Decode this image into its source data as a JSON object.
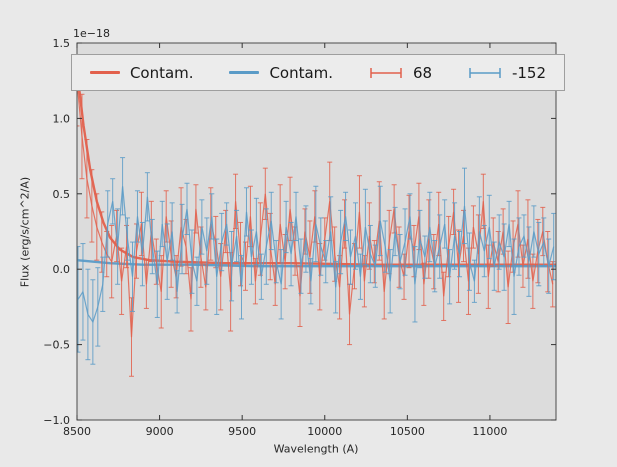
{
  "chart_data": {
    "type": "line",
    "title": "",
    "xlabel": "Wavelength (A)",
    "ylabel": "Flux (erg/s/cm^2/A)",
    "offset_label": "1e−18",
    "xlim": [
      8500,
      11400
    ],
    "ylim": [
      -1.0,
      1.5
    ],
    "xticks": [
      8500,
      9000,
      9500,
      10000,
      10500,
      11000
    ],
    "yticks": [
      -1.0,
      -0.5,
      0.0,
      0.5,
      1.0,
      1.5
    ],
    "grid": false,
    "legend_position": "upper center",
    "style": {
      "figure_bg": "#e9e9e9",
      "axes_bg": "#dcdcdc",
      "legend_bg": "#ececec",
      "red": "#e2604c",
      "blue": "#5a9bc7"
    },
    "legend": [
      {
        "label": "Contam.",
        "color": "#e2604c",
        "glyph": "line"
      },
      {
        "label": "Contam.",
        "color": "#5a9bc7",
        "glyph": "line"
      },
      {
        "label": "68",
        "color": "#e2604c",
        "glyph": "errorbar"
      },
      {
        "label": "-152",
        "color": "#5a9bc7",
        "glyph": "errorbar"
      }
    ],
    "series": [
      {
        "name": "Contam. (red)",
        "type": "line",
        "color": "#e2604c",
        "x": [
          8500,
          8540,
          8580,
          8620,
          8660,
          8700,
          8760,
          8840,
          8940,
          9100,
          9400,
          9800,
          10300,
          10800,
          11400
        ],
        "y": [
          1.32,
          0.95,
          0.66,
          0.45,
          0.31,
          0.21,
          0.13,
          0.08,
          0.06,
          0.05,
          0.04,
          0.04,
          0.03,
          0.03,
          0.03
        ]
      },
      {
        "name": "Contam. (blue)",
        "type": "line",
        "color": "#5a9bc7",
        "x": [
          8500,
          8600,
          8700,
          8900,
          9200,
          9600,
          10000,
          10500,
          11000,
          11400
        ],
        "y": [
          0.06,
          0.05,
          0.04,
          0.03,
          0.03,
          0.02,
          0.02,
          0.02,
          0.02,
          0.02
        ]
      },
      {
        "name": "68",
        "type": "errorbar",
        "color": "#e2604c",
        "x0": 8500,
        "dx": 30,
        "y": [
          1.25,
          0.88,
          0.6,
          0.42,
          0.28,
          0.18,
          0.1,
          0.05,
          0.22,
          -0.08,
          0.15,
          -0.45,
          0.12,
          0.3,
          -0.1,
          0.25,
          0.05,
          -0.15,
          0.35,
          0.1,
          -0.05,
          0.28,
          0.15,
          -0.2,
          0.4,
          0.08,
          -0.12,
          0.3,
          0.18,
          -0.05,
          0.25,
          -0.15,
          0.45,
          0.1,
          0.02,
          0.35,
          -0.08,
          0.2,
          0.5,
          0.15,
          -0.1,
          0.3,
          0.05,
          0.4,
          0.12,
          -0.18,
          0.25,
          0.08,
          0.35,
          -0.05,
          0.2,
          0.45,
          0.1,
          -0.12,
          0.3,
          -0.3,
          0.02,
          0.38,
          -0.08,
          0.22,
          0.05,
          0.32,
          -0.15,
          0.18,
          0.4,
          0.08,
          -0.05,
          0.25,
          0.12,
          0.35,
          -0.1,
          0.2,
          0.05,
          0.3,
          -0.18,
          0.15,
          0.38,
          0.02,
          0.22,
          -0.08,
          0.28,
          0.1,
          0.45,
          -0.05,
          0.18,
          0.05,
          0.25,
          -0.12,
          0.15,
          0.3,
          0.02,
          0.2,
          -0.08,
          0.12,
          0.25,
          0.05,
          -0.1
        ],
        "yerr": [
          0.3,
          0.28,
          0.26,
          0.24,
          0.22,
          0.2,
          0.15,
          0.24,
          0.17,
          0.22,
          0.14,
          0.26,
          0.18,
          0.21,
          0.16,
          0.2,
          0.15,
          0.24,
          0.17,
          0.22,
          0.14,
          0.26,
          0.18,
          0.21,
          0.16,
          0.2,
          0.15,
          0.24,
          0.17,
          0.22,
          0.14,
          0.26,
          0.18,
          0.21,
          0.16,
          0.2,
          0.15,
          0.24,
          0.17,
          0.22,
          0.14,
          0.26,
          0.18,
          0.21,
          0.16,
          0.2,
          0.15,
          0.24,
          0.17,
          0.22,
          0.14,
          0.26,
          0.18,
          0.21,
          0.16,
          0.2,
          0.15,
          0.24,
          0.17,
          0.22,
          0.14,
          0.26,
          0.18,
          0.21,
          0.16,
          0.2,
          0.15,
          0.24,
          0.17,
          0.22,
          0.14,
          0.26,
          0.18,
          0.21,
          0.16,
          0.2,
          0.15,
          0.24,
          0.17,
          0.22,
          0.14,
          0.26,
          0.18,
          0.21,
          0.16,
          0.2,
          0.15,
          0.24,
          0.17,
          0.22,
          0.14,
          0.26,
          0.18,
          0.21,
          0.16,
          0.2,
          0.15
        ]
      },
      {
        "name": "-152",
        "type": "errorbar",
        "color": "#5a9bc7",
        "x0": 8506,
        "dx": 30,
        "y": [
          -0.2,
          -0.15,
          -0.3,
          -0.35,
          -0.25,
          -0.1,
          0.3,
          0.45,
          0.15,
          0.55,
          0.2,
          -0.05,
          0.35,
          0.1,
          0.48,
          0.15,
          -0.1,
          0.3,
          0.05,
          0.25,
          -0.15,
          0.2,
          0.4,
          0.05,
          -0.08,
          0.28,
          0.12,
          0.35,
          -0.05,
          0.18,
          0.3,
          0.02,
          0.22,
          -0.12,
          0.38,
          0.08,
          0.25,
          -0.05,
          0.15,
          0.32,
          0.05,
          -0.1,
          0.28,
          0.1,
          0.35,
          0.02,
          0.2,
          -0.08,
          0.3,
          0.15,
          0.05,
          0.25,
          -0.12,
          0.18,
          0.35,
          0.08,
          0.22,
          -0.05,
          0.28,
          0.1,
          0.02,
          0.32,
          0.15,
          -0.08,
          0.25,
          0.05,
          0.18,
          0.35,
          -0.1,
          0.2,
          0.08,
          0.28,
          0.02,
          0.15,
          0.3,
          -0.05,
          0.22,
          0.1,
          0.42,
          0.05,
          -0.08,
          0.25,
          0.12,
          0.28,
          0.02,
          0.18,
          0.08,
          0.3,
          -0.05,
          0.15,
          0.22,
          0.05,
          0.25,
          0.1,
          0.18,
          0.02,
          0.15
        ],
        "yerr": [
          0.35,
          0.32,
          0.3,
          0.28,
          0.26,
          0.18,
          0.22,
          0.15,
          0.25,
          0.19,
          0.14,
          0.23,
          0.17,
          0.21,
          0.16,
          0.18,
          0.22,
          0.15,
          0.25,
          0.19,
          0.14,
          0.23,
          0.17,
          0.21,
          0.16,
          0.18,
          0.22,
          0.15,
          0.25,
          0.19,
          0.14,
          0.23,
          0.17,
          0.21,
          0.16,
          0.18,
          0.22,
          0.15,
          0.25,
          0.19,
          0.14,
          0.23,
          0.17,
          0.21,
          0.16,
          0.18,
          0.22,
          0.15,
          0.25,
          0.19,
          0.14,
          0.23,
          0.17,
          0.21,
          0.16,
          0.18,
          0.22,
          0.15,
          0.25,
          0.19,
          0.14,
          0.23,
          0.17,
          0.21,
          0.16,
          0.18,
          0.22,
          0.15,
          0.25,
          0.19,
          0.14,
          0.23,
          0.17,
          0.21,
          0.16,
          0.18,
          0.22,
          0.15,
          0.25,
          0.19,
          0.14,
          0.23,
          0.17,
          0.21,
          0.16,
          0.18,
          0.22,
          0.15,
          0.25,
          0.19,
          0.14,
          0.23,
          0.17,
          0.21,
          0.16,
          0.18,
          0.22
        ]
      }
    ]
  }
}
